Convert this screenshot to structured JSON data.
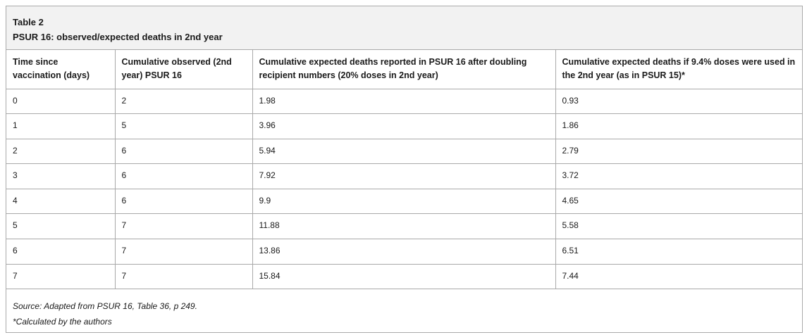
{
  "caption": {
    "label": "Table 2",
    "title": "PSUR 16: observed/expected deaths in 2nd year"
  },
  "table": {
    "headers": [
      "Time since vaccination (days)",
      "Cumulative observed (2nd year) PSUR 16",
      "Cumulative expected deaths reported in PSUR 16 after doubling recipient numbers (20% doses in 2nd year)",
      "Cumulative expected deaths if 9.4% doses were used in the 2nd year (as in PSUR 15)*"
    ],
    "rows": [
      [
        "0",
        "2",
        "1.98",
        "0.93"
      ],
      [
        "1",
        "5",
        "3.96",
        "1.86"
      ],
      [
        "2",
        "6",
        "5.94",
        "2.79"
      ],
      [
        "3",
        "6",
        "7.92",
        "3.72"
      ],
      [
        "4",
        "6",
        "9.9",
        "4.65"
      ],
      [
        "5",
        "7",
        "11.88",
        "5.58"
      ],
      [
        "6",
        "7",
        "13.86",
        "6.51"
      ],
      [
        "7",
        "7",
        "15.84",
        "7.44"
      ]
    ]
  },
  "footer": {
    "source": "Source: Adapted from PSUR 16, Table 36, p 249.",
    "note": "*Calculated by the authors"
  }
}
